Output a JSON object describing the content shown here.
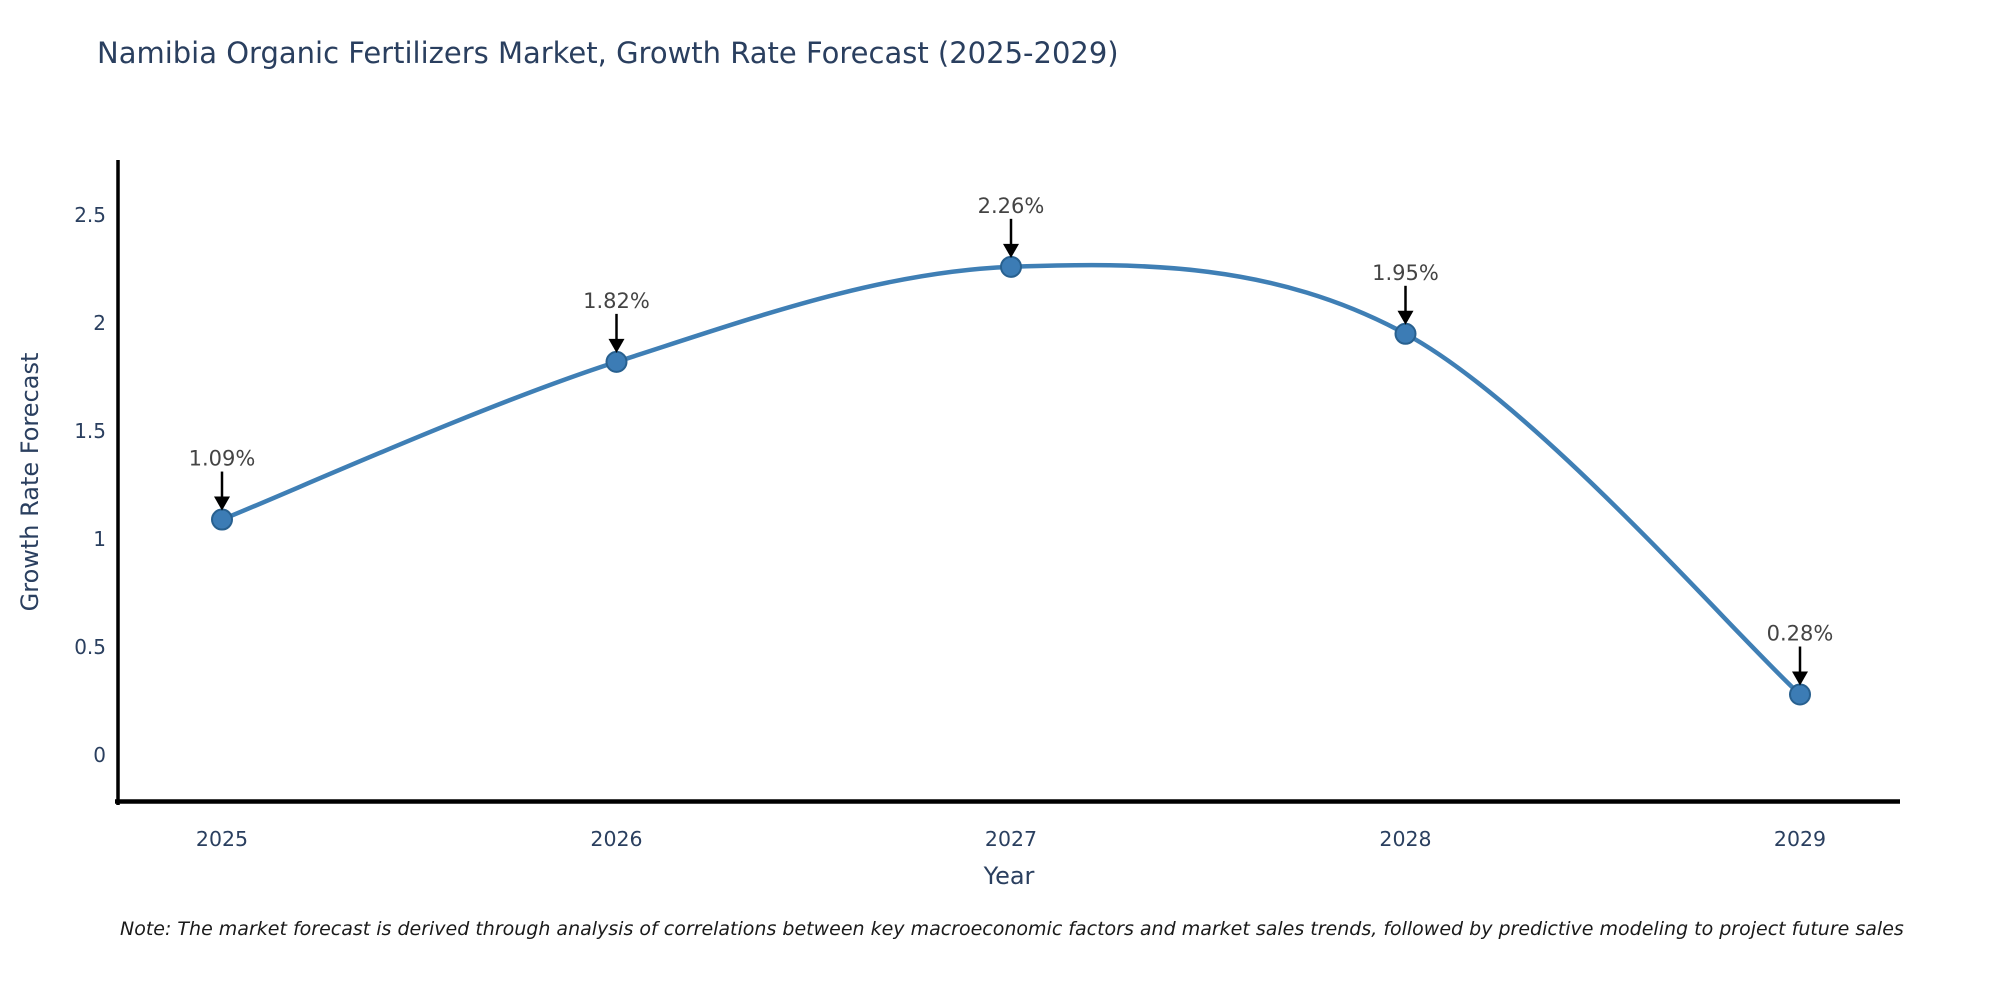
{
  "chart_data": {
    "type": "line",
    "title": "Namibia Organic Fertilizers Market, Growth Rate Forecast (2025-2029)",
    "xlabel": "Year",
    "ylabel": "Growth Rate Forecast",
    "categories": [
      "2025",
      "2026",
      "2027",
      "2028",
      "2029"
    ],
    "series": [
      {
        "name": "Growth Rate Forecast",
        "values": [
          1.09,
          1.82,
          2.26,
          1.95,
          0.28
        ],
        "point_labels": [
          "1.09%",
          "1.82%",
          "2.26%",
          "1.95%",
          "0.28%"
        ]
      }
    ],
    "y_ticks": [
      "0",
      "0.5",
      "1",
      "1.5",
      "2",
      "2.5"
    ],
    "y_tick_values": [
      0,
      0.5,
      1,
      1.5,
      2,
      2.5
    ],
    "ylim": [
      -0.23,
      2.75
    ],
    "line_shape": "spline",
    "grid": false,
    "legend_position": "none",
    "colors": {
      "line": "#3f7fb5",
      "marker_fill": "#3c7cb5",
      "marker_edge": "#28608f",
      "axis_line": "#000000",
      "title_text": "#2a3f5f",
      "tick_text": "#2a3f5f",
      "axis_title_text": "#2a3f5f",
      "annotation_text": "#444444",
      "arrow": "#000000",
      "note_text": "#1a1a1a"
    },
    "note": "Note: The market forecast is derived through analysis of correlations between key macroeconomic factors and market sales trends, followed by predictive modeling to project future sales"
  }
}
